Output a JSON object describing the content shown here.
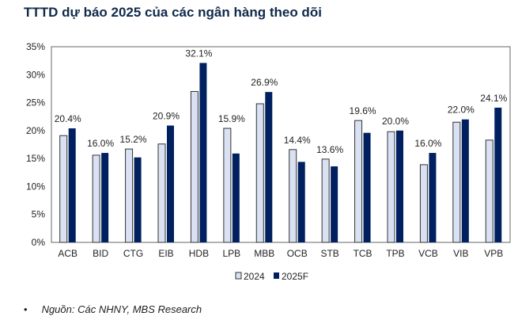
{
  "chart_data": {
    "type": "bar",
    "title": "TTTD dự báo 2025 của các ngân hàng theo dõi",
    "categories": [
      "ACB",
      "BID",
      "CTG",
      "EIB",
      "HDB",
      "LPB",
      "MBB",
      "OCB",
      "STB",
      "TCB",
      "TPB",
      "VCB",
      "VIB",
      "VPB"
    ],
    "series": [
      {
        "name": "2024",
        "color": "#d9e1f2",
        "values": [
          19.1,
          15.6,
          16.7,
          17.6,
          27.0,
          20.4,
          24.8,
          16.6,
          14.9,
          21.8,
          19.8,
          13.9,
          21.5,
          18.3
        ]
      },
      {
        "name": "2025F",
        "color": "#002060",
        "values": [
          20.4,
          16.0,
          15.2,
          20.9,
          32.1,
          15.9,
          26.9,
          14.4,
          13.6,
          19.6,
          20.0,
          16.0,
          22.0,
          24.1
        ]
      }
    ],
    "data_labels": [
      "20.4%",
      "16.0%",
      "15.2%",
      "20.9%",
      "32.1%",
      "15.9%",
      "26.9%",
      "14.4%",
      "13.6%",
      "19.6%",
      "20.0%",
      "16.0%",
      "22.0%",
      "24.1%"
    ],
    "ylim": [
      0,
      35
    ],
    "yticks": [
      0,
      5,
      10,
      15,
      20,
      25,
      30,
      35
    ],
    "ytick_labels": [
      "0%",
      "5%",
      "10%",
      "15%",
      "20%",
      "25%",
      "30%",
      "35%"
    ],
    "xlabel": "",
    "ylabel": "",
    "grid": false,
    "legend": "bottom"
  },
  "footer": {
    "bullet": "•",
    "source": "Nguồn: Các NHNY, MBS Research"
  }
}
